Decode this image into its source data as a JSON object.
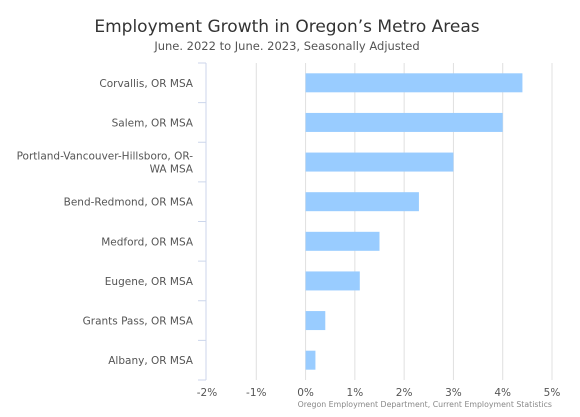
{
  "chart_data": {
    "type": "bar",
    "orientation": "horizontal",
    "title": "Employment Growth in Oregon’s Metro Areas",
    "subtitle": "June. 2022 to June. 2023, Seasonally Adjusted",
    "source": "Oregon Employment Department, Current Employment Statistics",
    "categories": [
      [
        "Corvallis, OR MSA"
      ],
      [
        "Salem, OR MSA"
      ],
      [
        "Portland-Vancouver-Hillsboro, OR-",
        "WA MSA"
      ],
      [
        "Bend-Redmond, OR MSA"
      ],
      [
        "Medford, OR MSA"
      ],
      [
        "Eugene, OR MSA"
      ],
      [
        "Grants Pass, OR MSA"
      ],
      [
        "Albany, OR MSA"
      ]
    ],
    "values": [
      4.4,
      4.0,
      3.0,
      2.3,
      1.5,
      1.1,
      0.4,
      0.2
    ],
    "xlim": [
      -2,
      5
    ],
    "xticks": [
      -2,
      -1,
      0,
      1,
      2,
      3,
      4,
      5
    ],
    "xtick_labels": [
      "-2%",
      "-1%",
      "0%",
      "1%",
      "2%",
      "3%",
      "4%",
      "5%"
    ],
    "grid": true,
    "bar_color": "#99ccff",
    "grid_color": "#e0e0e0",
    "axis_color": "#ccd6eb"
  }
}
